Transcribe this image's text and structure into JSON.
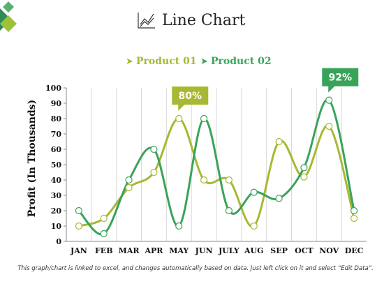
{
  "title": "Line Chart",
  "footnote": "This graph/chart is linked to excel, and changes automatically based on data. Just left click on it and select “Edit Data”.",
  "colors": {
    "product01": "#a8b832",
    "product02": "#3aa35a",
    "callout80": "#a8b832",
    "callout92": "#3aa35a",
    "logo_dark": "#2e8b57",
    "logo_light": "#9dc23a"
  },
  "icons": [
    "line-chart-icon",
    "diamond-logo-icon"
  ],
  "chart_data": {
    "type": "line",
    "title": "Line Chart",
    "xlabel": "",
    "ylabel": "Profit (In Thousands)",
    "categories": [
      "JAN",
      "FEB",
      "MAR",
      "APR",
      "MAY",
      "JUN",
      "JULY",
      "AUG",
      "SEP",
      "OCT",
      "NOV",
      "DEC"
    ],
    "ylim": [
      0,
      100
    ],
    "yticks": [
      "0",
      "10",
      "20",
      "30",
      "40",
      "50",
      "60",
      "70",
      "80",
      "90",
      "100"
    ],
    "grid": "vertical",
    "legend_position": "top",
    "series": [
      {
        "name": "Product 01",
        "values": [
          10,
          15,
          35,
          45,
          80,
          40,
          40,
          10,
          65,
          42,
          75,
          15
        ]
      },
      {
        "name": "Product 02",
        "values": [
          20,
          5,
          40,
          60,
          10,
          80,
          20,
          32,
          28,
          48,
          92,
          20
        ]
      }
    ],
    "annotations": [
      {
        "text": "80%",
        "category": "MAY",
        "series": "Product 01"
      },
      {
        "text": "92%",
        "category": "NOV",
        "series": "Product 02"
      }
    ]
  }
}
